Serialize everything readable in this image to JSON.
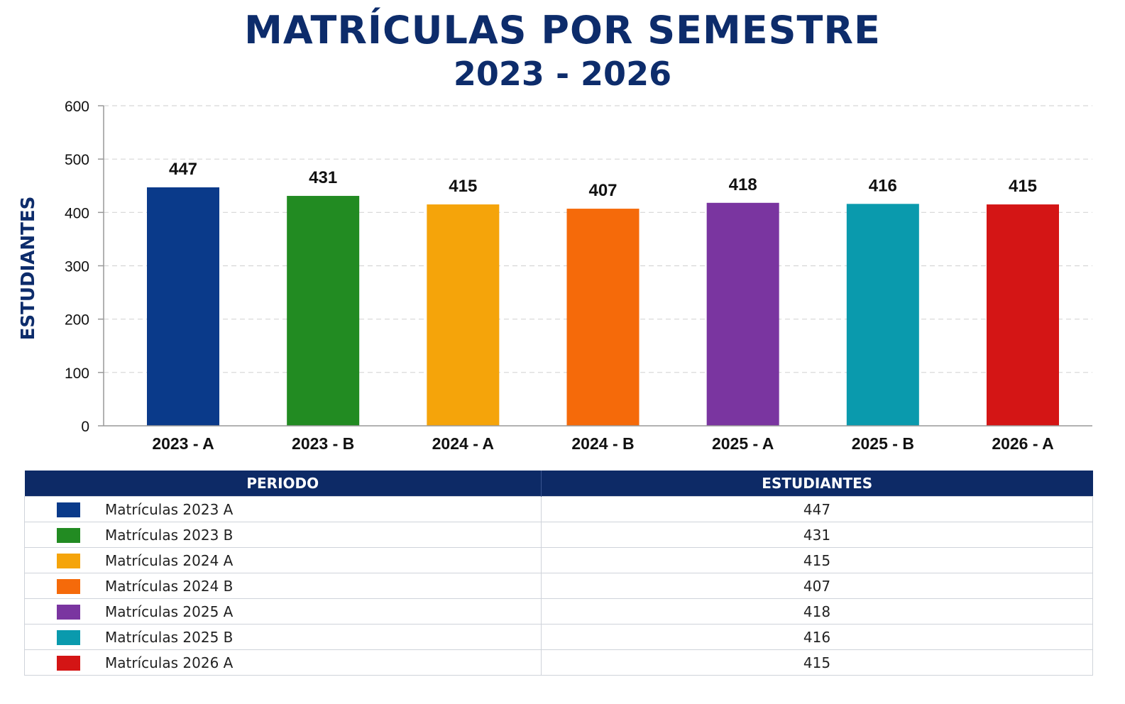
{
  "chart_data": {
    "type": "bar",
    "title": "MATRÍCULAS POR SEMESTRE",
    "subtitle": "2023 - 2026",
    "xlabel": "",
    "ylabel": "ESTUDIANTES",
    "ylim": [
      0,
      600
    ],
    "yticks": [
      0,
      100,
      200,
      300,
      400,
      500,
      600
    ],
    "grid": true,
    "categories": [
      "2023 - A",
      "2023 - B",
      "2024 - A",
      "2024 - B",
      "2025 - A",
      "2025 - B",
      "2026 - A"
    ],
    "values": [
      447,
      431,
      415,
      407,
      418,
      416,
      415
    ],
    "colors": [
      "#0a3a8a",
      "#228b22",
      "#f5a40a",
      "#f56a0a",
      "#7a35a0",
      "#0a9aad",
      "#d41515"
    ]
  },
  "table": {
    "headers": [
      "PERIODO",
      "ESTUDIANTES"
    ],
    "rows": [
      {
        "label": "Matrículas 2023 A",
        "value": "447",
        "color": "#0a3a8a"
      },
      {
        "label": "Matrículas 2023 B",
        "value": "431",
        "color": "#228b22"
      },
      {
        "label": "Matrículas 2024 A",
        "value": "415",
        "color": "#f5a40a"
      },
      {
        "label": "Matrículas 2024 B",
        "value": "407",
        "color": "#f56a0a"
      },
      {
        "label": "Matrículas 2025 A",
        "value": "418",
        "color": "#7a35a0"
      },
      {
        "label": "Matrículas 2025 B",
        "value": "416",
        "color": "#0a9aad"
      },
      {
        "label": "Matrículas 2026 A",
        "value": "415",
        "color": "#d41515"
      }
    ]
  }
}
